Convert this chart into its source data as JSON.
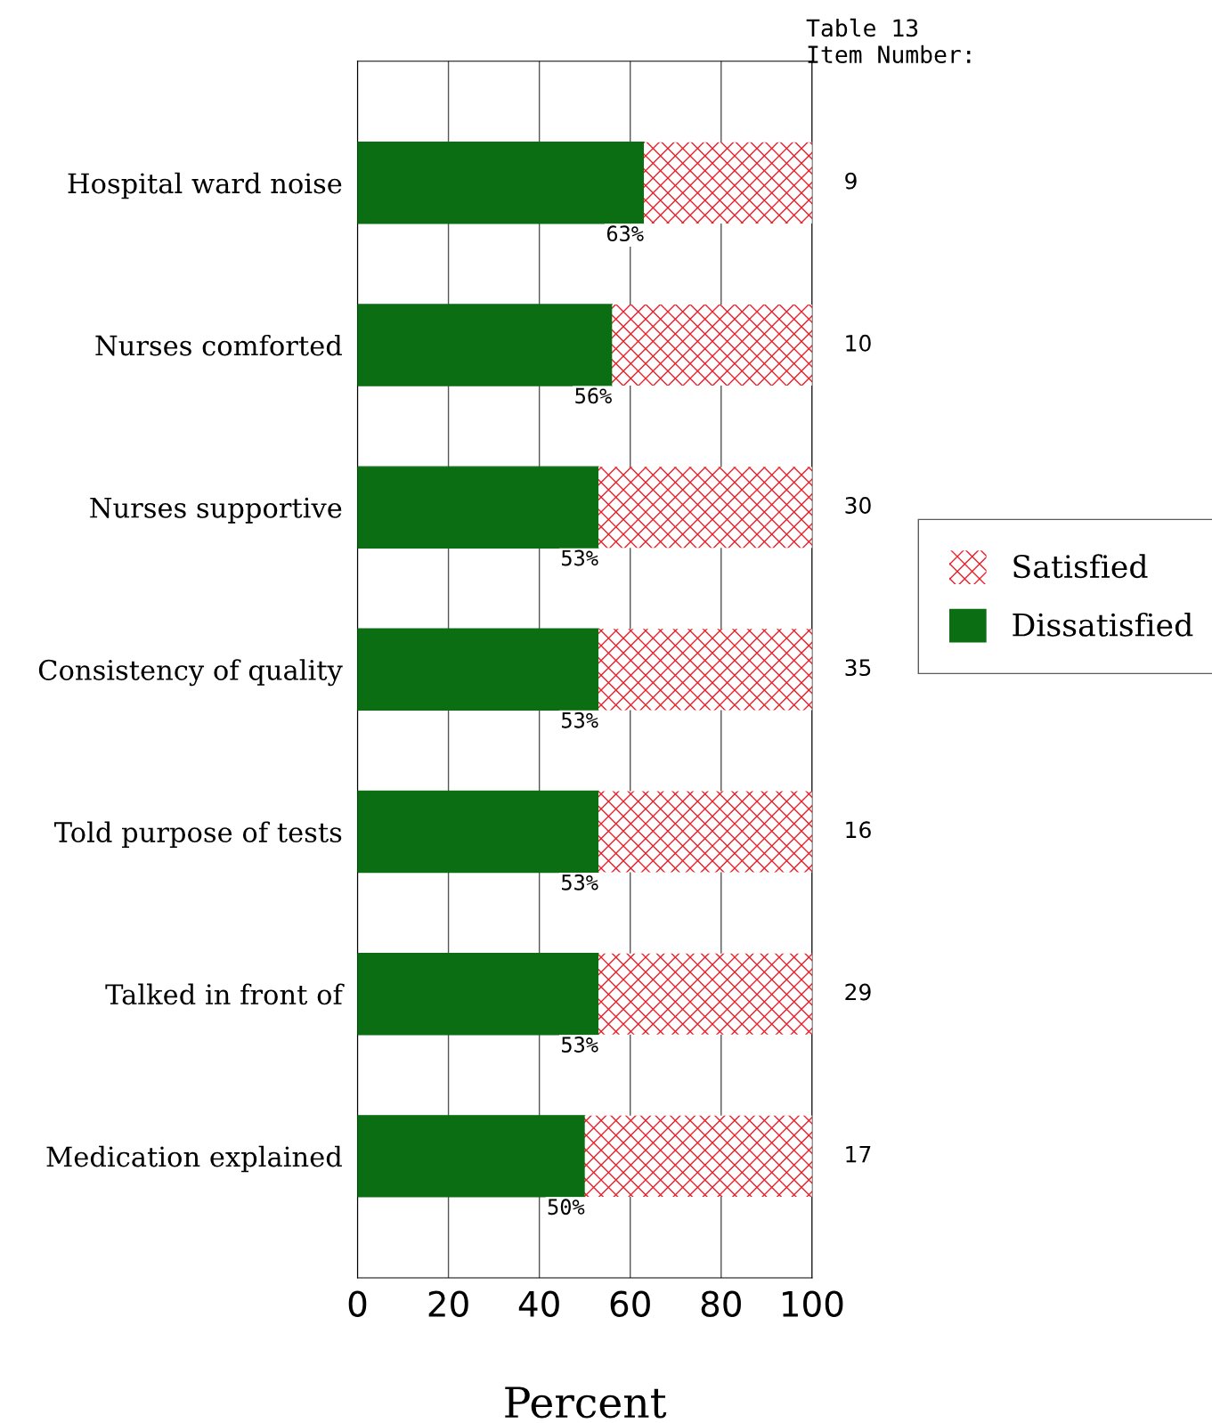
{
  "chart_data": {
    "type": "bar",
    "orientation": "horizontal",
    "stacked": true,
    "categories": [
      "Hospital ward noise",
      "Nurses comforted",
      "Nurses supportive",
      "Consistency of quality",
      "Told purpose of tests",
      "Talked in front of",
      "Medication explained"
    ],
    "series": [
      {
        "name": "Dissatisfied",
        "color": "#0b6e12",
        "values": [
          63,
          56,
          53,
          53,
          53,
          53,
          50
        ],
        "value_labels": [
          "63%",
          "56%",
          "53%",
          "53%",
          "53%",
          "53%",
          "50%"
        ]
      },
      {
        "name": "Satisfied",
        "color": "#e8202a",
        "values": [
          37,
          44,
          47,
          47,
          47,
          47,
          50
        ]
      }
    ],
    "xlabel": "Percent",
    "xlim": [
      0,
      100
    ],
    "xticks": [
      0,
      20,
      40,
      60,
      80,
      100
    ],
    "grid": "x",
    "legend": "right",
    "annotations": [
      "Table 13\nItem Number:",
      "9",
      "10",
      "30",
      "35",
      "16",
      "29",
      "17"
    ]
  }
}
